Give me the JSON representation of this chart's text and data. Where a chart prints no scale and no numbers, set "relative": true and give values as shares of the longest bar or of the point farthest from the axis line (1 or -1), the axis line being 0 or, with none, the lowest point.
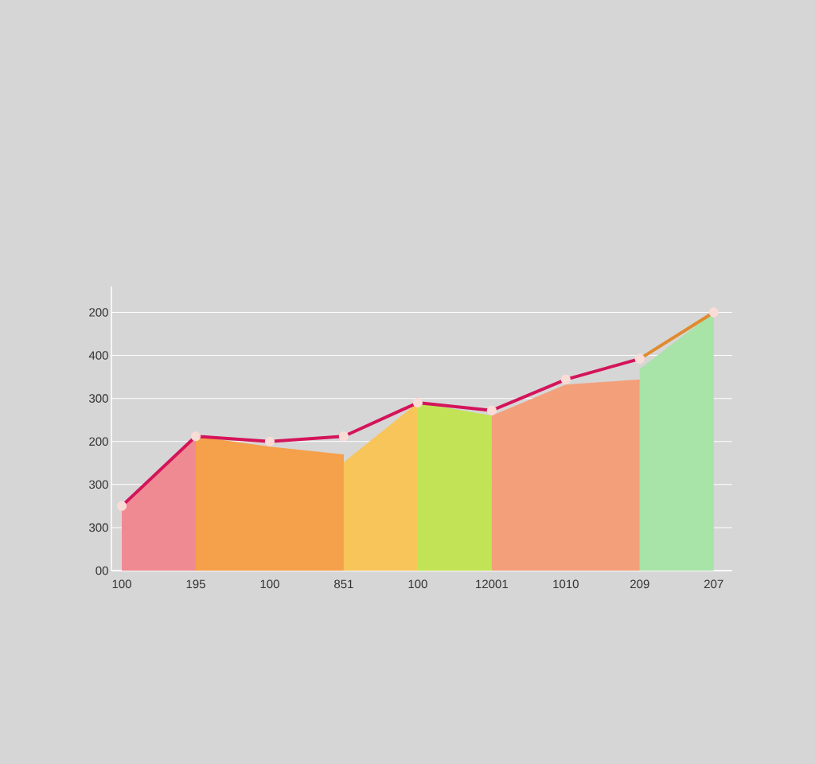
{
  "chart_data": {
    "type": "line",
    "categories": [
      "100",
      "195",
      "100",
      "851",
      "100",
      "12001",
      "1010",
      "209",
      "207"
    ],
    "relative": true,
    "annotations": [
      "00",
      "300",
      "300",
      "200",
      "300",
      "400",
      "200"
    ],
    "grid": "y",
    "series": [
      {
        "type": "area",
        "color": "#f08a92",
        "values": [
          0.25,
          0.52,
          null,
          null,
          null,
          null,
          null,
          null,
          null
        ]
      },
      {
        "type": "area",
        "color": "#f5a04a",
        "values": [
          null,
          0.52,
          0.48,
          0.45,
          null,
          null,
          null,
          null,
          null
        ]
      },
      {
        "type": "area",
        "color": "#f7c55a",
        "values": [
          null,
          null,
          null,
          0.42,
          0.65,
          null,
          null,
          null,
          null
        ]
      },
      {
        "type": "area",
        "color": "#c2e355",
        "values": [
          null,
          null,
          null,
          null,
          0.65,
          0.6,
          null,
          null,
          null
        ]
      },
      {
        "type": "area",
        "color": "#f29f7a",
        "values": [
          null,
          null,
          null,
          null,
          null,
          0.6,
          0.72,
          0.74,
          null
        ]
      },
      {
        "type": "area",
        "color": "#a8e3a8",
        "values": [
          null,
          null,
          null,
          null,
          null,
          null,
          null,
          0.78,
          1
        ]
      },
      {
        "color": "#d4145a",
        "marker": "circle",
        "values": [
          0.25,
          0.52,
          0.5,
          0.52,
          0.65,
          0.62,
          0.74,
          0.82,
          null
        ]
      },
      {
        "color": "#e08a30",
        "marker": "circle",
        "values": [
          null,
          null,
          null,
          null,
          null,
          null,
          null,
          0.82,
          1
        ]
      }
    ]
  }
}
